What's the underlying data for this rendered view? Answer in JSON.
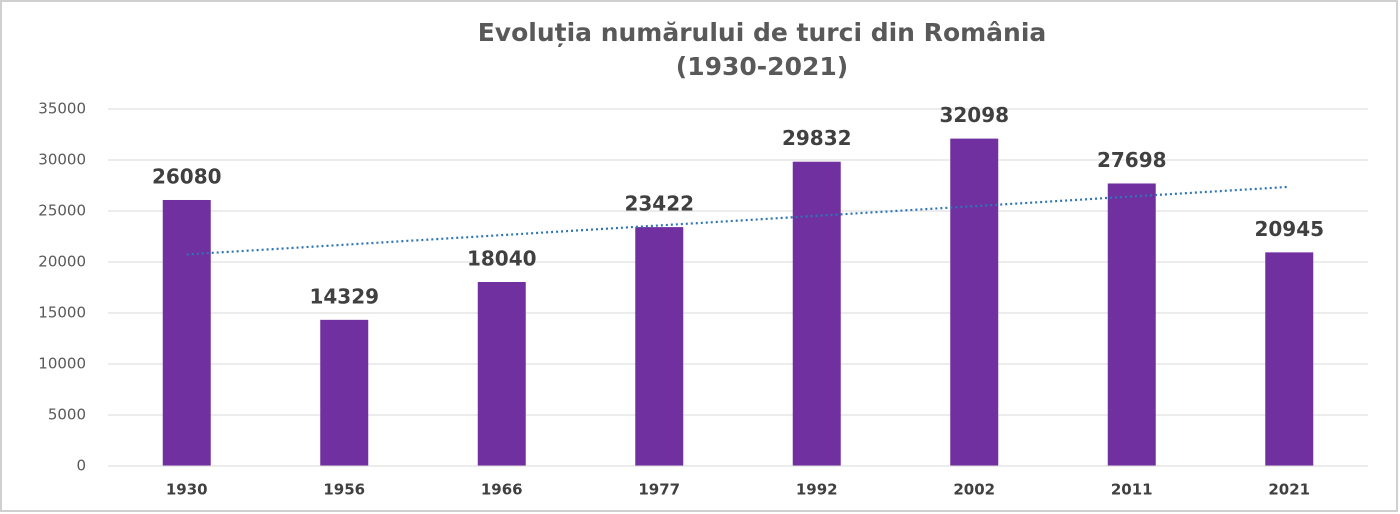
{
  "chart_data": {
    "type": "bar",
    "title": "Evoluția numărului de turci din România",
    "subtitle": "(1930-2021)",
    "categories": [
      "1930",
      "1956",
      "1966",
      "1977",
      "1992",
      "2002",
      "2011",
      "2021"
    ],
    "values": [
      26080,
      14329,
      18040,
      23422,
      29832,
      32098,
      27698,
      20945
    ],
    "color": "#7030a0",
    "ylim": [
      0,
      35000
    ],
    "yticks": [
      0,
      5000,
      10000,
      15000,
      20000,
      25000,
      30000,
      35000
    ],
    "grid": true,
    "data_labels": true,
    "trendline": "linear",
    "trendline_color": "#2e75b6"
  }
}
